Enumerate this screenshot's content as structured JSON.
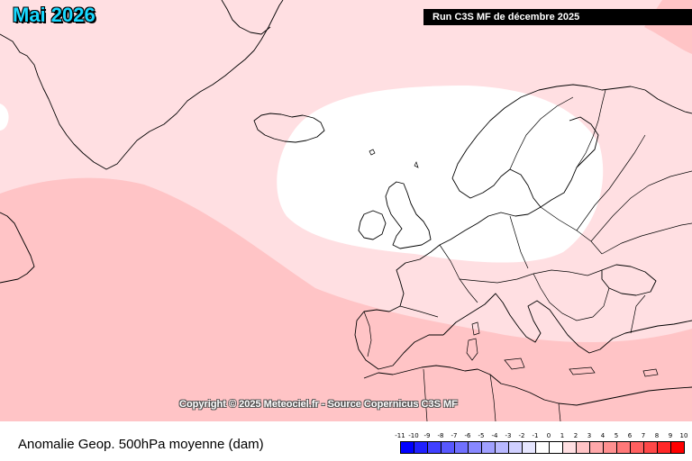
{
  "map": {
    "title": "Mai 2026",
    "run_label": "Run C3S MF de décembre 2025",
    "copyright": "Copyright © 2025 Meteociel.fr - Source Copernicus C3S MF",
    "caption": "Anomalie Geop. 500hPa moyenne (dam)",
    "base_color": "#ffdfe2",
    "neutral_color": "#ffffff",
    "warm_color": "#ffc4c6",
    "border_color": "#000000"
  },
  "legend": {
    "ticks": [
      "-11",
      "-10",
      "-9",
      "-8",
      "-7",
      "-6",
      "-5",
      "-4",
      "-3",
      "-2",
      "-1",
      "0",
      "1",
      "2",
      "3",
      "4",
      "5",
      "6",
      "7",
      "8",
      "9",
      "10"
    ],
    "colors": [
      "#0000ff",
      "#2020ff",
      "#4040ff",
      "#5858ff",
      "#7070ff",
      "#8888ff",
      "#a0a0ff",
      "#b8b8ff",
      "#d0d0ff",
      "#e6e6ff",
      "#ffffff",
      "#ffffff",
      "#ffdfe2",
      "#ffc4c6",
      "#ffa8aa",
      "#ff9090",
      "#ff7878",
      "#ff6060",
      "#ff4848",
      "#ff2828",
      "#ff0000"
    ]
  }
}
